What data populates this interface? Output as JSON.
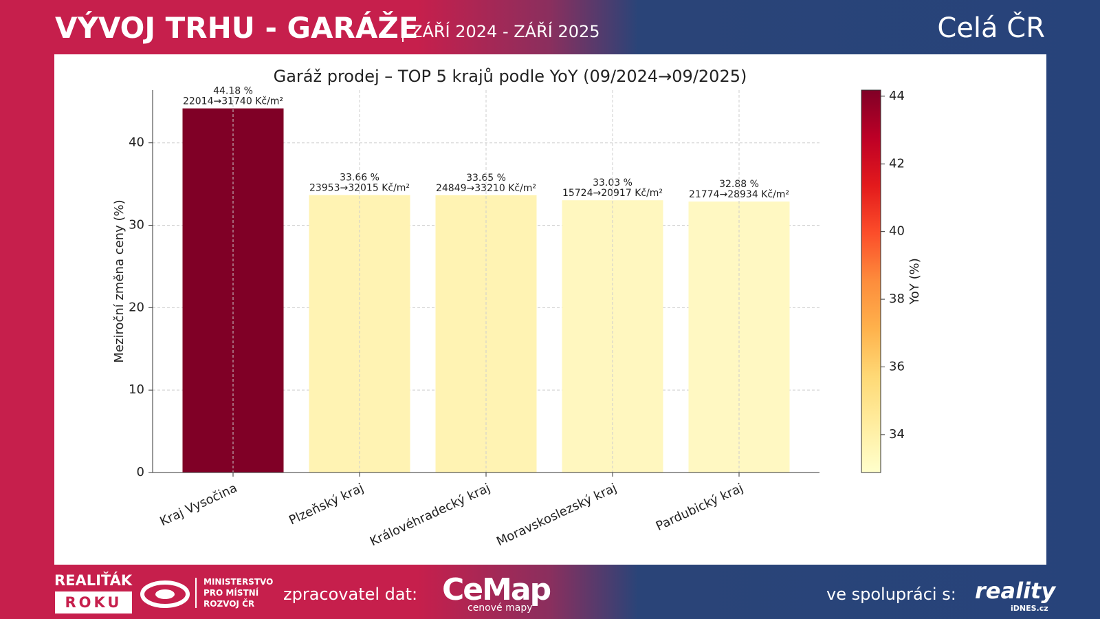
{
  "header": {
    "title": "VÝVOJ TRHU - GARÁŽE",
    "subtitle": "ZÁŘÍ 2024 - ZÁŘÍ 2025",
    "region": "Celá ČR"
  },
  "chart_data": {
    "type": "bar",
    "title": "Garáž prodej – TOP 5 krajů podle YoY (09/2024→09/2025)",
    "ylabel": "Meziroční změna ceny (%)",
    "categories": [
      "Kraj Vysočina",
      "Plzeňský kraj",
      "Královéhradecký kraj",
      "Moravskoslezský kraj",
      "Pardubický kraj"
    ],
    "values": [
      44.18,
      33.66,
      33.65,
      33.03,
      32.88
    ],
    "value_labels": [
      "44.18 %",
      "33.66 %",
      "33.65 %",
      "33.03 %",
      "32.88 %"
    ],
    "price_labels": [
      "22014→31740 Kč/m²",
      "23953→32015 Kč/m²",
      "24849→33210 Kč/m²",
      "15724→20917 Kč/m²",
      "21774→28934 Kč/m²"
    ],
    "colors": [
      "#800026",
      "#fff3b3",
      "#fff3b3",
      "#fff7bf",
      "#fff8c2"
    ],
    "ylim": [
      0,
      46.4
    ],
    "yticks": [
      0,
      10,
      20,
      30,
      40
    ],
    "grid": true,
    "colorbar": {
      "label": "YoY (%)",
      "lim": [
        32.88,
        44.18
      ],
      "ticks": [
        34,
        36,
        38,
        40,
        42,
        44
      ],
      "colormap": [
        "#ffffcc",
        "#ffeda0",
        "#fed976",
        "#feb24c",
        "#fd8d3c",
        "#fc4e2a",
        "#e31a1c",
        "#bd0026",
        "#800026"
      ]
    }
  },
  "footer": {
    "award_top": "REALIŤÁK",
    "award_bottom": "ROKU",
    "ministry": [
      "MINISTERSTVO",
      "PRO MÍSTNÍ",
      "ROZVOJ ČR"
    ],
    "processor_label": "zpracovatel dat:",
    "cemap": "CeMap",
    "cemap_sub": "cenové mapy",
    "partner_label": "ve spolupráci s:",
    "partner": "reality",
    "partner_sub": "iDNES.cz"
  }
}
